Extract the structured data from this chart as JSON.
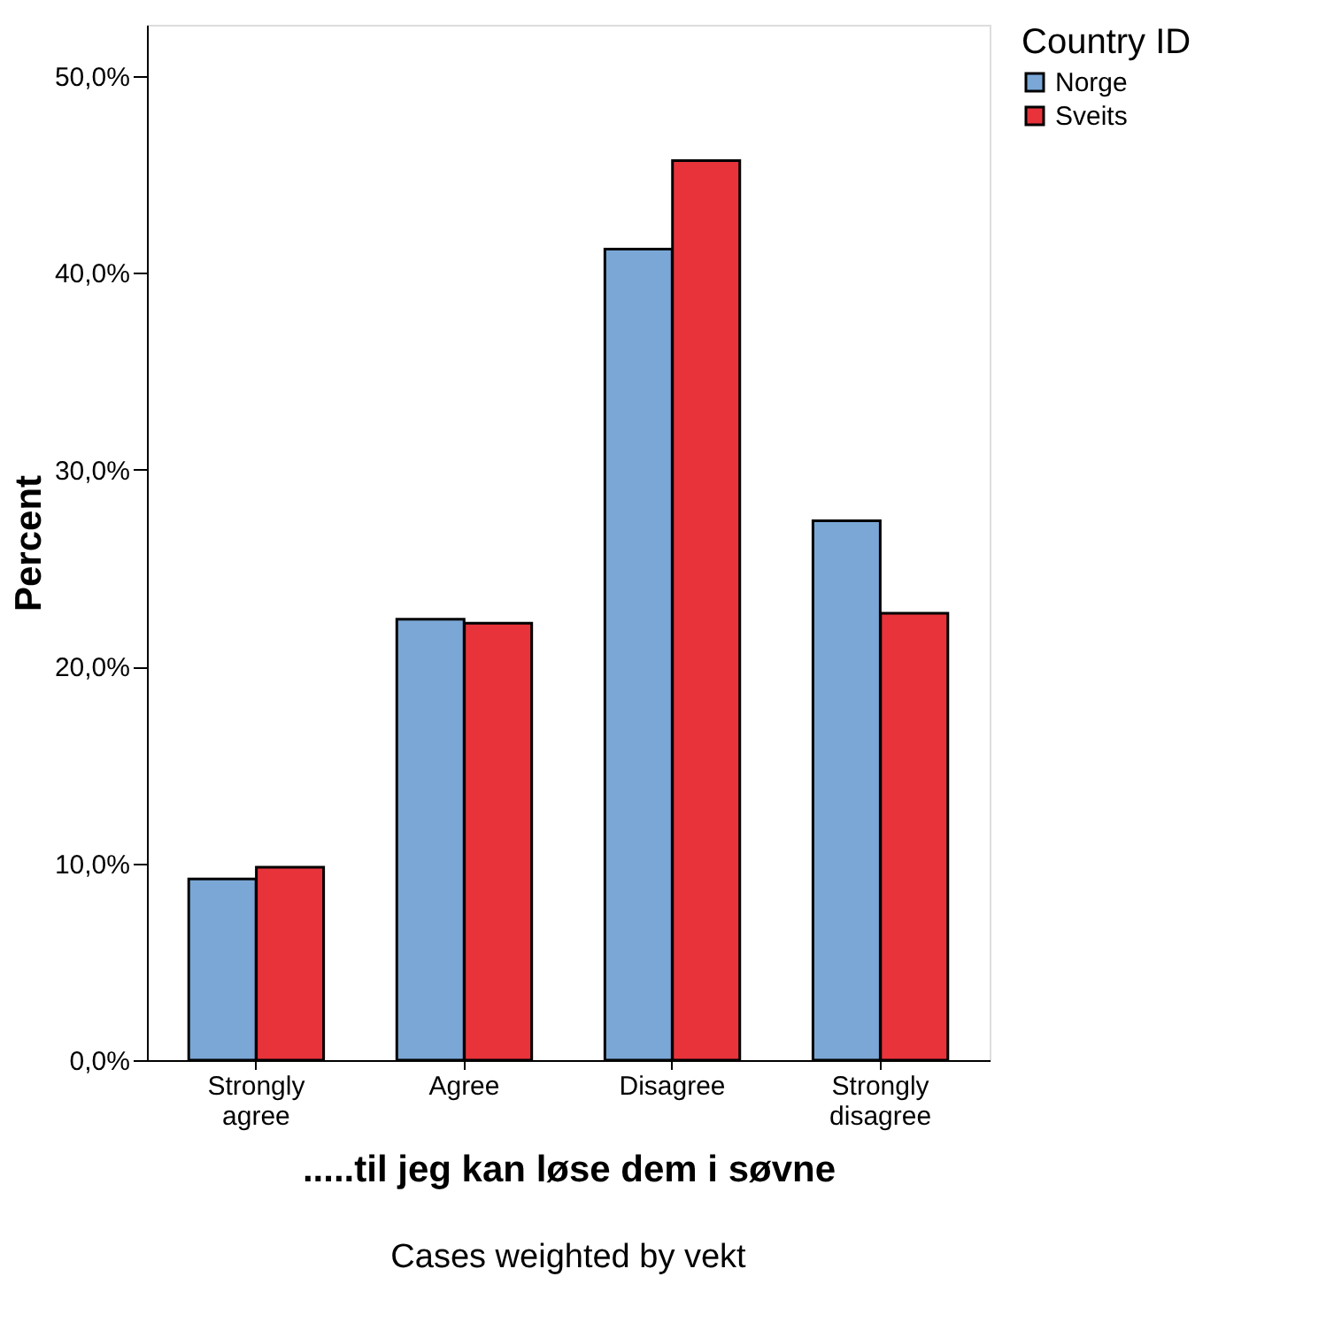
{
  "chart_data": {
    "type": "bar",
    "xlabel": ".....til jeg kan løse dem i søvne",
    "ylabel": "Percent",
    "legend_title": "Country ID",
    "categories": [
      "Strongly agree",
      "Agree",
      "Disagree",
      "Strongly disagree"
    ],
    "series": [
      {
        "name": "Norge",
        "color": "#7aa7d6",
        "values": [
          9.2,
          22.4,
          41.2,
          27.4
        ]
      },
      {
        "name": "Sveits",
        "color": "#e8333b",
        "values": [
          9.8,
          22.2,
          45.7,
          22.7
        ]
      }
    ],
    "ylim": [
      0,
      52.6
    ],
    "yticks": [
      {
        "value": 0,
        "label": "0,0%"
      },
      {
        "value": 10,
        "label": "10,0%"
      },
      {
        "value": 20,
        "label": "20,0%"
      },
      {
        "value": 30,
        "label": "30,0%"
      },
      {
        "value": 40,
        "label": "40,0%"
      },
      {
        "value": 50,
        "label": "50,0%"
      }
    ],
    "grid": false,
    "legend": "right",
    "annotations": [
      "Cases weighted by vekt"
    ]
  }
}
